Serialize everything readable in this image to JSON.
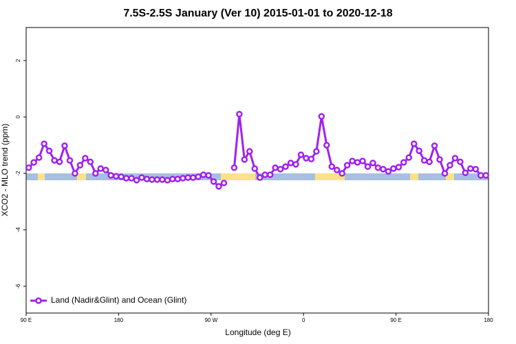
{
  "chart_data": {
    "type": "line",
    "title": "7.5S-2.5S January (Ver 10)   2015-01-01 to 2020-12-18",
    "xlabel": "Longitude (deg E)",
    "ylabel": "XCO2 - MLO trend (ppm)",
    "x": [
      92.5,
      97.5,
      102.5,
      107.5,
      112.5,
      117.5,
      122.5,
      127.5,
      132.5,
      137.5,
      142.5,
      147.5,
      152.5,
      157.5,
      162.5,
      167.5,
      172.5,
      177.5,
      182.5,
      187.5,
      192.5,
      197.5,
      202.5,
      207.5,
      212.5,
      217.5,
      222.5,
      227.5,
      232.5,
      237.5,
      242.5,
      247.5,
      252.5,
      257.5,
      262.5,
      267.5,
      272.5,
      277.5,
      282.5,
      287.5,
      292.5,
      297.5,
      302.5,
      307.5,
      312.5,
      317.5,
      322.5,
      327.5,
      332.5,
      337.5,
      342.5,
      347.5,
      352.5,
      357.5,
      362.5,
      367.5,
      372.5,
      377.5,
      382.5,
      387.5,
      392.5,
      397.5,
      402.5,
      407.5,
      412.5,
      417.5,
      422.5,
      427.5,
      432.5,
      437.5,
      442.5,
      447.5,
      452.5,
      457.5,
      462.5,
      467.5,
      472.5,
      477.5,
      482.5,
      487.5,
      492.5,
      497.5,
      502.5,
      507.5,
      512.5,
      517.5,
      522.5,
      527.5,
      532.5,
      537.5
    ],
    "series": [
      {
        "name": "Land (Nadir&Glint) and Ocean (Glint)",
        "color": "#a020f0",
        "values": [
          -1.8,
          -1.61,
          -1.44,
          -0.95,
          -1.2,
          -1.54,
          -1.59,
          -1.02,
          -1.54,
          -2.0,
          -1.71,
          -1.46,
          -1.59,
          -2.0,
          -1.83,
          -1.88,
          -2.07,
          -2.1,
          -2.12,
          -2.17,
          -2.17,
          -2.24,
          -2.15,
          -2.2,
          -2.22,
          -2.22,
          -2.22,
          -2.24,
          -2.2,
          -2.2,
          -2.17,
          -2.15,
          -2.15,
          -2.12,
          -2.05,
          -2.07,
          -2.29,
          -2.46,
          -2.34,
          null,
          -1.8,
          0.1,
          -1.51,
          -1.22,
          -1.83,
          -2.15,
          -2.05,
          -2.05,
          -1.8,
          -1.85,
          -1.76,
          -1.63,
          -1.68,
          -1.34,
          -1.46,
          -1.49,
          -1.22,
          0.02,
          -1.0,
          -1.76,
          -1.88,
          -2.0,
          -1.71,
          -1.56,
          -1.61,
          -1.56,
          -1.76,
          -1.63,
          -1.8,
          -1.85,
          -1.93,
          -1.83,
          -1.78,
          -1.61,
          -1.44,
          -0.95,
          -1.2,
          -1.54,
          -1.59,
          -1.02,
          -1.51,
          -2.0,
          -1.71,
          -1.46,
          -1.59,
          -1.98,
          -1.83,
          -1.85,
          -2.07,
          -2.07
        ]
      }
    ],
    "xlim": [
      90,
      540
    ],
    "xticks": [
      {
        "value": 90,
        "label": "90 E"
      },
      {
        "value": 180,
        "label": "180"
      },
      {
        "value": 270,
        "label": "90 W"
      },
      {
        "value": 360,
        "label": "0"
      },
      {
        "value": 450,
        "label": "90 E"
      },
      {
        "value": 540,
        "label": "180"
      }
    ],
    "ylim": [
      -6.95,
      3.17
    ],
    "yticks": [
      2,
      0,
      -2,
      -4,
      -6
    ],
    "legend": "bottom-left"
  }
}
